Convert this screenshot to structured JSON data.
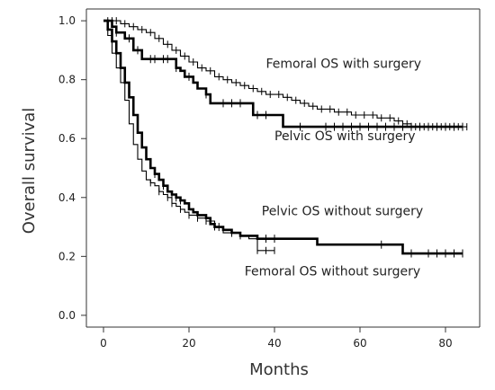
{
  "chart_data": {
    "type": "line",
    "ylabel": "Overall survival",
    "xlabel": "Months",
    "xlim": [
      -4,
      88
    ],
    "ylim": [
      -0.04,
      1.04
    ],
    "xticks": [
      0,
      20,
      40,
      60,
      80
    ],
    "yticks": [
      0.0,
      0.2,
      0.4,
      0.6,
      0.8,
      1.0
    ],
    "xtick_labels": [
      "0",
      "20",
      "40",
      "60",
      "80"
    ],
    "ytick_labels": [
      "0.0",
      "0.2",
      "0.4",
      "0.6",
      "0.8",
      "1.0"
    ],
    "grid": false,
    "series": [
      {
        "name": "Femoral OS with surgery",
        "weight": "thin",
        "color": "#000000",
        "points": [
          [
            0,
            1.0
          ],
          [
            4,
            0.99
          ],
          [
            6,
            0.98
          ],
          [
            8,
            0.97
          ],
          [
            10,
            0.96
          ],
          [
            12,
            0.94
          ],
          [
            14,
            0.92
          ],
          [
            16,
            0.9
          ],
          [
            18,
            0.88
          ],
          [
            20,
            0.86
          ],
          [
            22,
            0.84
          ],
          [
            24,
            0.83
          ],
          [
            26,
            0.81
          ],
          [
            28,
            0.8
          ],
          [
            30,
            0.79
          ],
          [
            32,
            0.78
          ],
          [
            34,
            0.77
          ],
          [
            36,
            0.76
          ],
          [
            38,
            0.75
          ],
          [
            40,
            0.75
          ],
          [
            42,
            0.74
          ],
          [
            44,
            0.73
          ],
          [
            46,
            0.72
          ],
          [
            48,
            0.71
          ],
          [
            50,
            0.7
          ],
          [
            52,
            0.7
          ],
          [
            54,
            0.69
          ],
          [
            56,
            0.69
          ],
          [
            58,
            0.68
          ],
          [
            60,
            0.68
          ],
          [
            62,
            0.68
          ],
          [
            64,
            0.67
          ],
          [
            66,
            0.67
          ],
          [
            68,
            0.66
          ],
          [
            70,
            0.65
          ],
          [
            72,
            0.64
          ],
          [
            76,
            0.64
          ],
          [
            80,
            0.64
          ],
          [
            85,
            0.64
          ]
        ],
        "censor_x": [
          1,
          2,
          3,
          5,
          7,
          9,
          11,
          13,
          15,
          17,
          19,
          21,
          23,
          25,
          27,
          29,
          31,
          33,
          35,
          37,
          39,
          41,
          43,
          45,
          47,
          49,
          51,
          53,
          55,
          57,
          59,
          61,
          63,
          65,
          67,
          69,
          71,
          73,
          75,
          77,
          79,
          81,
          83,
          85
        ]
      },
      {
        "name": "Pelvic OS with surgery",
        "weight": "thick",
        "color": "#000000",
        "points": [
          [
            0,
            1.0
          ],
          [
            2,
            0.98
          ],
          [
            3,
            0.96
          ],
          [
            5,
            0.94
          ],
          [
            7,
            0.9
          ],
          [
            9,
            0.87
          ],
          [
            16,
            0.87
          ],
          [
            17,
            0.84
          ],
          [
            18,
            0.83
          ],
          [
            19,
            0.81
          ],
          [
            21,
            0.79
          ],
          [
            22,
            0.77
          ],
          [
            24,
            0.75
          ],
          [
            25,
            0.72
          ],
          [
            34,
            0.72
          ],
          [
            35,
            0.68
          ],
          [
            42,
            0.68
          ],
          [
            42,
            0.64
          ],
          [
            50,
            0.64
          ],
          [
            60,
            0.64
          ],
          [
            70,
            0.64
          ],
          [
            80,
            0.64
          ],
          [
            84,
            0.64
          ]
        ],
        "censor_x": [
          3,
          6,
          8,
          11,
          12,
          14,
          15,
          17,
          20,
          24,
          28,
          30,
          32,
          36,
          38,
          46,
          52,
          54,
          56,
          58,
          60,
          62,
          64,
          66,
          68,
          70,
          72,
          74,
          76,
          78,
          80,
          82,
          84
        ]
      },
      {
        "name": "Pelvic OS without surgery",
        "weight": "thick",
        "color": "#000000",
        "points": [
          [
            0,
            1.0
          ],
          [
            1,
            0.97
          ],
          [
            2,
            0.93
          ],
          [
            3,
            0.89
          ],
          [
            4,
            0.84
          ],
          [
            5,
            0.79
          ],
          [
            6,
            0.74
          ],
          [
            7,
            0.68
          ],
          [
            8,
            0.62
          ],
          [
            9,
            0.57
          ],
          [
            10,
            0.53
          ],
          [
            11,
            0.5
          ],
          [
            12,
            0.48
          ],
          [
            13,
            0.46
          ],
          [
            14,
            0.44
          ],
          [
            15,
            0.42
          ],
          [
            16,
            0.41
          ],
          [
            17,
            0.4
          ],
          [
            18,
            0.39
          ],
          [
            19,
            0.38
          ],
          [
            20,
            0.36
          ],
          [
            21,
            0.35
          ],
          [
            22,
            0.34
          ],
          [
            24,
            0.33
          ],
          [
            25,
            0.31
          ],
          [
            26,
            0.3
          ],
          [
            28,
            0.29
          ],
          [
            30,
            0.28
          ],
          [
            32,
            0.27
          ],
          [
            34,
            0.27
          ],
          [
            36,
            0.26
          ],
          [
            40,
            0.26
          ],
          [
            41,
            0.26
          ],
          [
            42,
            0.26
          ],
          [
            48,
            0.26
          ],
          [
            50,
            0.24
          ],
          [
            60,
            0.24
          ],
          [
            68,
            0.24
          ],
          [
            70,
            0.21
          ],
          [
            80,
            0.21
          ],
          [
            84,
            0.21
          ]
        ],
        "censor_x": [
          12,
          14,
          16,
          17,
          18,
          22,
          24,
          27,
          30,
          38,
          40,
          65,
          72,
          76,
          78,
          80,
          82,
          84
        ]
      },
      {
        "name": "Femoral OS without surgery",
        "weight": "thin",
        "color": "#000000",
        "points": [
          [
            0,
            1.0
          ],
          [
            1,
            0.95
          ],
          [
            2,
            0.89
          ],
          [
            3,
            0.84
          ],
          [
            4,
            0.79
          ],
          [
            5,
            0.73
          ],
          [
            6,
            0.65
          ],
          [
            7,
            0.58
          ],
          [
            8,
            0.53
          ],
          [
            9,
            0.49
          ],
          [
            10,
            0.46
          ],
          [
            11,
            0.45
          ],
          [
            12,
            0.44
          ],
          [
            13,
            0.42
          ],
          [
            14,
            0.41
          ],
          [
            15,
            0.4
          ],
          [
            16,
            0.38
          ],
          [
            17,
            0.37
          ],
          [
            18,
            0.36
          ],
          [
            19,
            0.35
          ],
          [
            20,
            0.34
          ],
          [
            22,
            0.33
          ],
          [
            24,
            0.32
          ],
          [
            26,
            0.3
          ],
          [
            28,
            0.28
          ],
          [
            30,
            0.28
          ],
          [
            32,
            0.27
          ],
          [
            34,
            0.26
          ],
          [
            36,
            0.22
          ],
          [
            38,
            0.22
          ],
          [
            40,
            0.22
          ]
        ],
        "censor_x": [
          11,
          13,
          15,
          16,
          18,
          20,
          22,
          24,
          26,
          32,
          36,
          38,
          40
        ]
      }
    ],
    "annotations": [
      {
        "text": "Femoral OS with surgery",
        "x": 38,
        "y": 0.84
      },
      {
        "text": "Pelvic OS with surgery",
        "x": 40,
        "y": 0.595
      },
      {
        "text": "Pelvic OS without surgery",
        "x": 37,
        "y": 0.34
      },
      {
        "text": "Femoral OS without surgery",
        "x": 33,
        "y": 0.135
      }
    ]
  }
}
